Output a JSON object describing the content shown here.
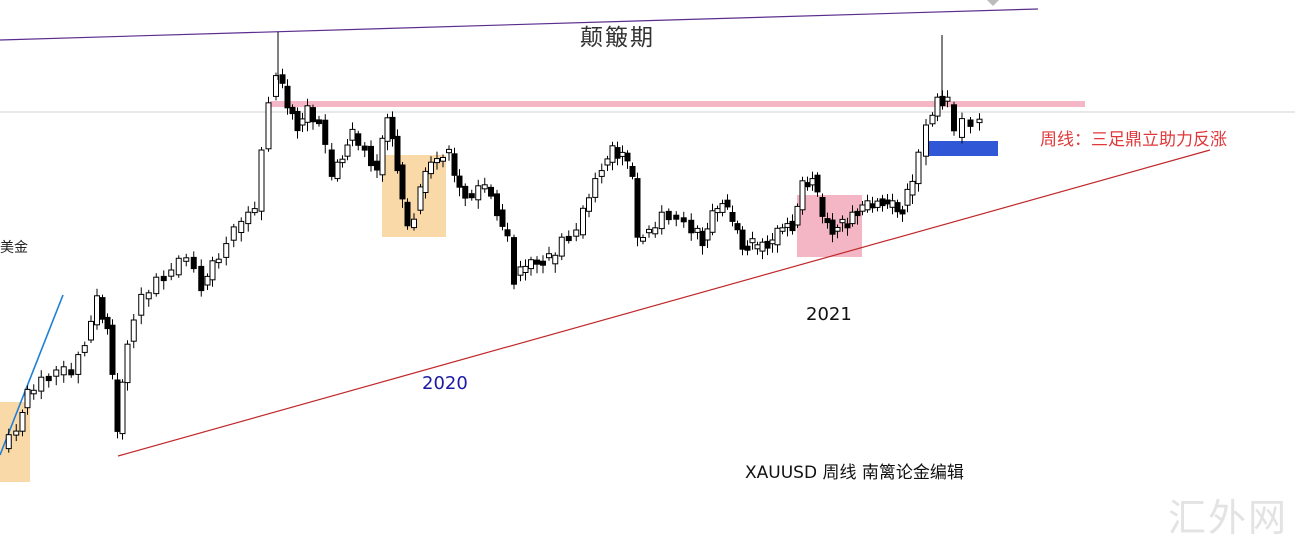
{
  "texts": {
    "title": "颠簸期",
    "side_label": "美金",
    "label_2020": "2020",
    "label_2021": "2021",
    "note": "周线：三足鼎立助力反涨",
    "caption": "XAUUSD  周线  南篱论金编辑",
    "watermark": "汇外网"
  },
  "chart_data": {
    "type": "candlestick",
    "symbol": "XAUUSD",
    "timeframe": "周线",
    "grid": false,
    "legend": "none",
    "colors": {
      "up": "#ffffff",
      "down": "#000000",
      "wick": "#000000",
      "trend_top": "#5b2d8e",
      "trend_bottom": "#c0282a",
      "trend_left": "#1e7fd6",
      "resistance": "#f5b7c5",
      "support": "#2f57d6",
      "zone_orange": "#f9d9a8",
      "zone_pink": "#f4b6c4",
      "horizontal": "#d0d0d0"
    }
  }
}
